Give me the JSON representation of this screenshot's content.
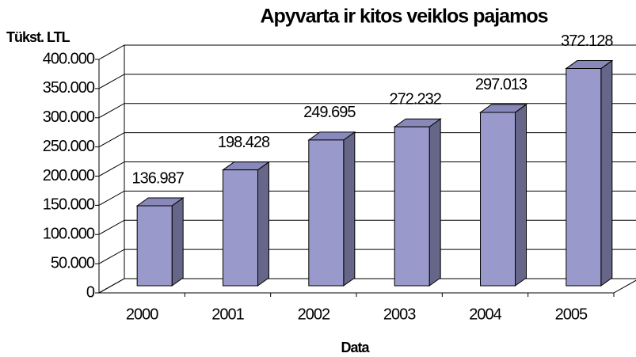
{
  "chart_data": {
    "type": "bar3d",
    "title": "Apyvarta ir kitos veiklos pajamos",
    "y_axis_label": "Tükst. LTL",
    "x_axis_label": "Data",
    "categories": [
      "2000",
      "2001",
      "2002",
      "2003",
      "2004",
      "2005"
    ],
    "values": [
      136987,
      198428,
      249695,
      272232,
      297013,
      372128
    ],
    "value_labels": [
      "136.987",
      "198.428",
      "249.695",
      "272.232",
      "297.013",
      "372.128"
    ],
    "color": "#9999cc",
    "ylim": [
      0,
      400000
    ],
    "yticks": [
      0,
      {
        "value": 50000,
        "label": "50.000"
      },
      {
        "value": 100000,
        "label": "100.000"
      },
      {
        "value": 150000,
        "label": "150.000"
      },
      {
        "value": 200000,
        "label": "200.000"
      },
      {
        "value": 250000,
        "label": "250.000"
      },
      {
        "value": 300000,
        "label": "300.000"
      },
      {
        "value": 350000,
        "label": "350.000"
      },
      {
        "value": 400000,
        "label": "400.000"
      }
    ],
    "grid": true
  }
}
